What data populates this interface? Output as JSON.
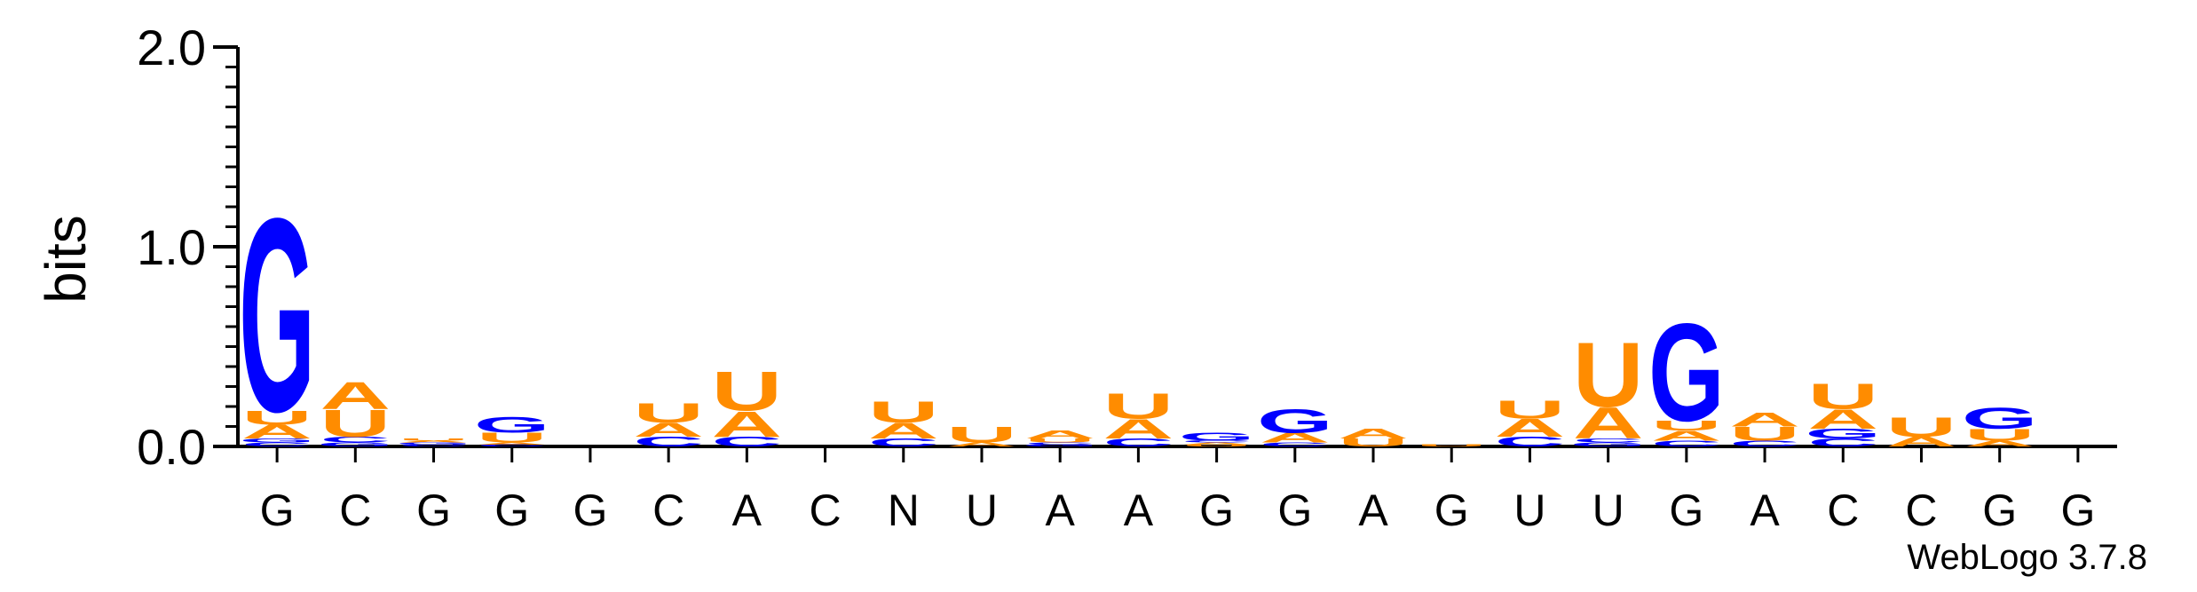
{
  "chart_data": {
    "type": "sequence-logo",
    "ylabel": "bits",
    "ylim": [
      0,
      2.0
    ],
    "y_ticks": [
      {
        "value": 0.0,
        "label": "0.0"
      },
      {
        "value": 1.0,
        "label": "1.0"
      },
      {
        "value": 2.0,
        "label": "2.0"
      }
    ],
    "y_minor_step": 0.1,
    "positions": [
      "G",
      "C",
      "G",
      "G",
      "G",
      "C",
      "A",
      "C",
      "N",
      "U",
      "A",
      "A",
      "G",
      "G",
      "A",
      "G",
      "U",
      "U",
      "G",
      "A",
      "C",
      "C",
      "G",
      "G"
    ],
    "colors": {
      "G": "#0000ff",
      "C": "#0000ff",
      "A": "#ff8c00",
      "U": "#ff8c00"
    },
    "stacks": [
      [
        {
          "base": "C",
          "bits": 0.02
        },
        {
          "base": "G",
          "bits": 0.02
        },
        {
          "base": "A",
          "bits": 0.07
        },
        {
          "base": "U",
          "bits": 0.07
        },
        {
          "base": "G",
          "bits": 0.99
        }
      ],
      [
        {
          "base": "G",
          "bits": 0.02
        },
        {
          "base": "C",
          "bits": 0.03
        },
        {
          "base": "U",
          "bits": 0.14
        },
        {
          "base": "A",
          "bits": 0.14
        }
      ],
      [
        {
          "base": "C",
          "bits": 0.01
        },
        {
          "base": "G",
          "bits": 0.01
        },
        {
          "base": "A",
          "bits": 0.01
        },
        {
          "base": "U",
          "bits": 0.01
        }
      ],
      [
        {
          "base": "C",
          "bits": 0.01
        },
        {
          "base": "A",
          "bits": 0.01
        },
        {
          "base": "U",
          "bits": 0.05
        },
        {
          "base": "G",
          "bits": 0.08
        }
      ],
      [],
      [
        {
          "base": "C",
          "bits": 0.05
        },
        {
          "base": "A",
          "bits": 0.07
        },
        {
          "base": "U",
          "bits": 0.1
        }
      ],
      [
        {
          "base": "C",
          "bits": 0.05
        },
        {
          "base": "A",
          "bits": 0.13
        },
        {
          "base": "U",
          "bits": 0.2
        }
      ],
      [],
      [
        {
          "base": "C",
          "bits": 0.04
        },
        {
          "base": "A",
          "bits": 0.08
        },
        {
          "base": "U",
          "bits": 0.11
        }
      ],
      [
        {
          "base": "A",
          "bits": 0.02
        },
        {
          "base": "U",
          "bits": 0.08
        }
      ],
      [
        {
          "base": "G",
          "bits": 0.01
        },
        {
          "base": "C",
          "bits": 0.01
        },
        {
          "base": "U",
          "bits": 0.02
        },
        {
          "base": "A",
          "bits": 0.04
        }
      ],
      [
        {
          "base": "C",
          "bits": 0.04
        },
        {
          "base": "A",
          "bits": 0.1
        },
        {
          "base": "U",
          "bits": 0.13
        }
      ],
      [
        {
          "base": "U",
          "bits": 0.01
        },
        {
          "base": "A",
          "bits": 0.01
        },
        {
          "base": "C",
          "bits": 0.01
        },
        {
          "base": "G",
          "bits": 0.04
        }
      ],
      [
        {
          "base": "C",
          "bits": 0.02
        },
        {
          "base": "A",
          "bits": 0.05
        },
        {
          "base": "G",
          "bits": 0.12
        }
      ],
      [
        {
          "base": "U",
          "bits": 0.04
        },
        {
          "base": "A",
          "bits": 0.05
        }
      ],
      [
        {
          "base": "U",
          "bits": 0.01
        }
      ],
      [
        {
          "base": "C",
          "bits": 0.05
        },
        {
          "base": "A",
          "bits": 0.09
        },
        {
          "base": "U",
          "bits": 0.09
        }
      ],
      [
        {
          "base": "G",
          "bits": 0.02
        },
        {
          "base": "C",
          "bits": 0.02
        },
        {
          "base": "A",
          "bits": 0.16
        },
        {
          "base": "U",
          "bits": 0.33
        }
      ],
      [
        {
          "base": "C",
          "bits": 0.03
        },
        {
          "base": "A",
          "bits": 0.05
        },
        {
          "base": "U",
          "bits": 0.05
        },
        {
          "base": "G",
          "bits": 0.5
        }
      ],
      [
        {
          "base": "C",
          "bits": 0.03
        },
        {
          "base": "U",
          "bits": 0.07
        },
        {
          "base": "A",
          "bits": 0.07
        }
      ],
      [
        {
          "base": "C",
          "bits": 0.04
        },
        {
          "base": "G",
          "bits": 0.05
        },
        {
          "base": "A",
          "bits": 0.1
        },
        {
          "base": "U",
          "bits": 0.13
        }
      ],
      [
        {
          "base": "A",
          "bits": 0.05
        },
        {
          "base": "U",
          "bits": 0.1
        }
      ],
      [
        {
          "base": "A",
          "bits": 0.03
        },
        {
          "base": "U",
          "bits": 0.06
        },
        {
          "base": "G",
          "bits": 0.11
        }
      ],
      []
    ],
    "footer": "WebLogo 3.7.8"
  }
}
